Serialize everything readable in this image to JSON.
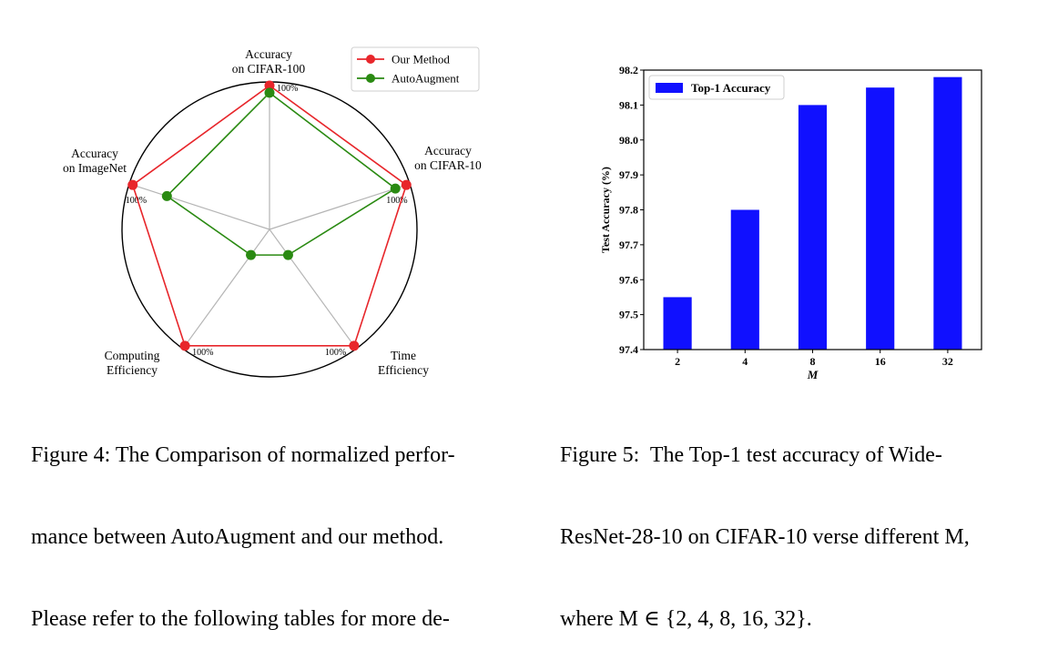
{
  "figure4": {
    "caption_lines": [
      "Figure 4: The Comparison of normalized perfor-",
      "mance between AutoAugment and our method.",
      "Please refer to the following tables for more de-"
    ],
    "chart_data": {
      "type": "radar",
      "axes": [
        "Accuracy on CIFAR-100",
        "Accuracy on CIFAR-10",
        "Time Efficiency",
        "Computing Efficiency",
        "Accuracy on ImageNet"
      ],
      "axis_label_lines": [
        [
          "Accuracy",
          "on CIFAR-100"
        ],
        [
          "Accuracy",
          "on CIFAR-10"
        ],
        [
          "Time",
          "Efficiency"
        ],
        [
          "Computing",
          "Efficiency"
        ],
        [
          "Accuracy",
          "on ImageNet"
        ]
      ],
      "ring_label": "100%",
      "series": [
        {
          "name": "Our Method",
          "color": "#e8262b",
          "values": [
            100,
            100,
            100,
            100,
            100
          ]
        },
        {
          "name": "AutoAugment",
          "color": "#2a8a12",
          "values": [
            95,
            92,
            22,
            22,
            75
          ]
        }
      ],
      "legend_position": "top-right",
      "grid": true
    }
  },
  "figure5": {
    "caption_lines": [
      "Figure 5:  The Top-1 test accuracy of Wide-",
      "ResNet-28-10 on CIFAR-10 verse different M,",
      "where M ∈ {2, 4, 8, 16, 32}."
    ],
    "chart_data": {
      "type": "bar",
      "categories": [
        "2",
        "4",
        "8",
        "16",
        "32"
      ],
      "series": [
        {
          "name": "Top-1 Accuracy",
          "color": "#1010ff",
          "values": [
            97.55,
            97.8,
            98.1,
            98.15,
            98.18
          ]
        }
      ],
      "xlabel": "M",
      "ylabel": "Test Accuracy (%)",
      "ylim": [
        97.4,
        98.2
      ],
      "yticks": [
        "97.4",
        "97.5",
        "97.6",
        "97.7",
        "97.8",
        "97.9",
        "98.0",
        "98.1",
        "98.2"
      ],
      "legend_position": "top-left",
      "grid": false
    }
  }
}
